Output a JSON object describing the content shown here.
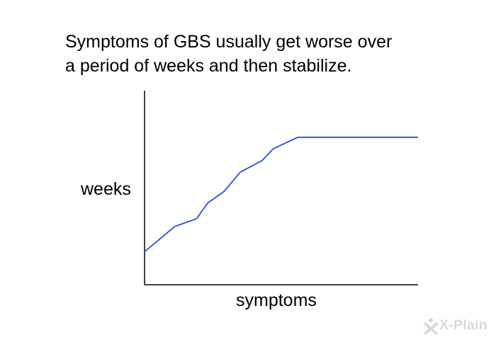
{
  "caption": {
    "line1": "Symptoms of GBS usually get worse over",
    "line2": "a period of weeks and then stabilize."
  },
  "logo": {
    "text": "X-Plain",
    "icon": "x-plain-logo-icon"
  },
  "chart_data": {
    "type": "line",
    "title": "Symptoms of GBS usually get worse over a period of weeks and then stabilize.",
    "xlabel": "symptoms",
    "ylabel": "weeks",
    "xlim": [
      0,
      100
    ],
    "ylim": [
      0,
      100
    ],
    "grid": false,
    "legend": "none",
    "series": [
      {
        "color": "#2b4fd8",
        "x": [
          0,
          11,
          19,
          23,
          29,
          35,
          43,
          47,
          56,
          100
        ],
        "y": [
          17,
          30,
          34,
          42,
          48,
          58,
          64,
          70,
          76,
          76
        ]
      }
    ]
  }
}
